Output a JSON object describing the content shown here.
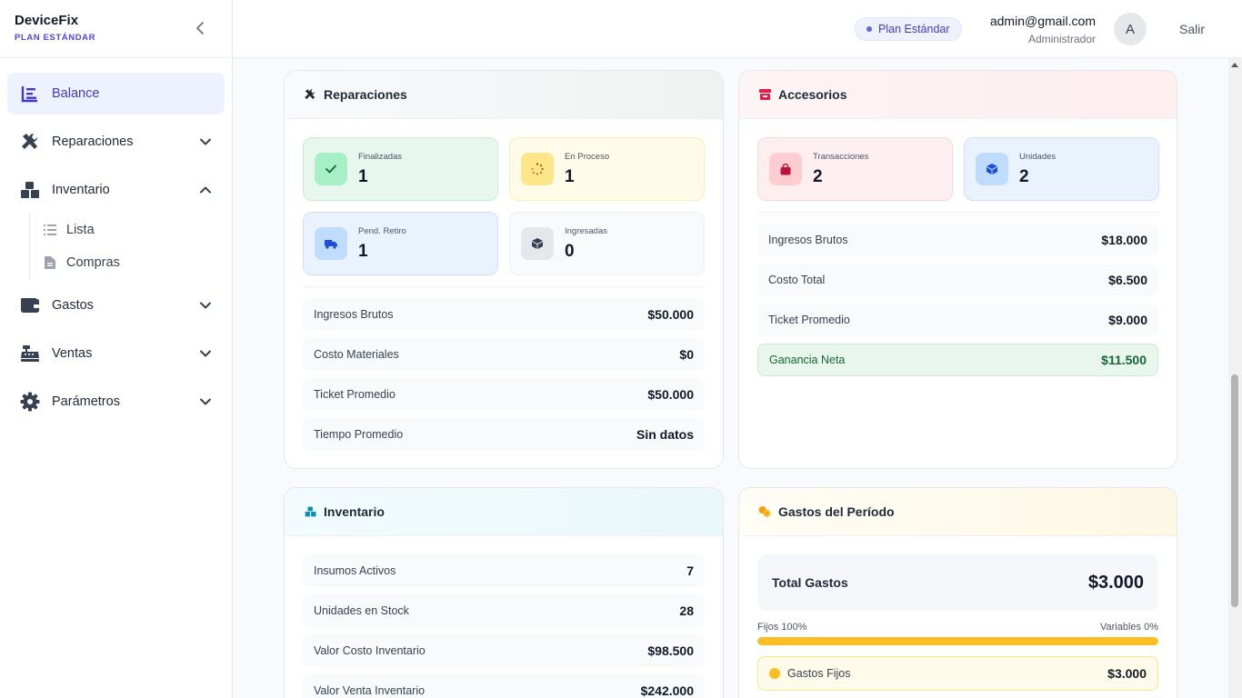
{
  "brand": {
    "name": "DeviceFix",
    "plan": "PLAN ESTÁNDAR"
  },
  "sidebar": {
    "items": [
      {
        "label": "Balance",
        "icon": "chart-bar-icon",
        "active": true
      },
      {
        "label": "Reparaciones",
        "icon": "tools-icon",
        "expandable": true,
        "expanded": false
      },
      {
        "label": "Inventario",
        "icon": "boxes-icon",
        "expandable": true,
        "expanded": true,
        "children": [
          {
            "label": "Lista",
            "icon": "list-icon"
          },
          {
            "label": "Compras",
            "icon": "file-icon"
          }
        ]
      },
      {
        "label": "Gastos",
        "icon": "wallet-icon",
        "expandable": true,
        "expanded": false
      },
      {
        "label": "Ventas",
        "icon": "cash-register-icon",
        "expandable": true,
        "expanded": false
      },
      {
        "label": "Parámetros",
        "icon": "gear-icon",
        "expandable": true,
        "expanded": false
      }
    ]
  },
  "header": {
    "plan_badge": "Plan Estándar",
    "user_email": "admin@gmail.com",
    "user_role": "Administrador",
    "avatar_initial": "A",
    "logout": "Salir"
  },
  "reparaciones": {
    "title": "Reparaciones",
    "stats": [
      {
        "label": "Finalizadas",
        "value": "1"
      },
      {
        "label": "En Proceso",
        "value": "1"
      },
      {
        "label": "Pend. Retiro",
        "value": "1"
      },
      {
        "label": "Ingresadas",
        "value": "0"
      }
    ],
    "rows": [
      {
        "label": "Ingresos Brutos",
        "value": "$50.000"
      },
      {
        "label": "Costo Materiales",
        "value": "$0"
      },
      {
        "label": "Ticket Promedio",
        "value": "$50.000"
      },
      {
        "label": "Tiempo Promedio",
        "value": "Sin datos"
      }
    ]
  },
  "accesorios": {
    "title": "Accesorios",
    "stats": [
      {
        "label": "Transacciones",
        "value": "2"
      },
      {
        "label": "Unidades",
        "value": "2"
      }
    ],
    "rows": [
      {
        "label": "Ingresos Brutos",
        "value": "$18.000"
      },
      {
        "label": "Costo Total",
        "value": "$6.500"
      },
      {
        "label": "Ticket Promedio",
        "value": "$9.000"
      },
      {
        "label": "Ganancia Neta",
        "value": "$11.500"
      }
    ]
  },
  "inventario": {
    "title": "Inventario",
    "rows": [
      {
        "label": "Insumos Activos",
        "value": "7"
      },
      {
        "label": "Unidades en Stock",
        "value": "28"
      },
      {
        "label": "Valor Costo Inventario",
        "value": "$98.500"
      },
      {
        "label": "Valor Venta Inventario",
        "value": "$242.000"
      }
    ]
  },
  "gastos": {
    "title": "Gastos del Período",
    "total_label": "Total Gastos",
    "total_value": "$3.000",
    "fixed_label": "Fijos 100%",
    "variable_label": "Variables 0%",
    "fixed_fraction": 1.0,
    "fixed_row_label": "Gastos Fijos",
    "fixed_row_value": "$3.000"
  },
  "colors": {
    "accent": "#4f46e5",
    "success": "#166534",
    "warning": "#fbbf24"
  }
}
